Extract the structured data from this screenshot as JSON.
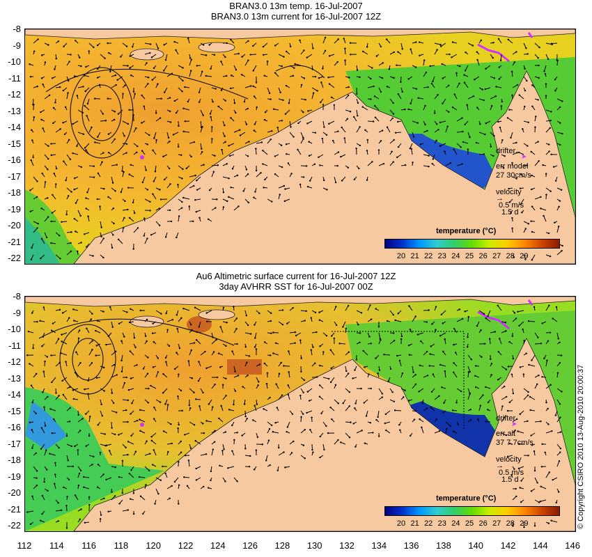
{
  "top_panel": {
    "title_line1": "BRAN3.0 13m temp. 16-Jul-2007",
    "title_line2": "BRAN3.0 13m current for 16-Jul-2007 12Z",
    "drifter_label": "drifter",
    "err_label": "err model",
    "err_value": "27 30cm/s",
    "velocity_label": "velocity",
    "scale_speed": "0.5 m/s",
    "scale_time": "1.5 d"
  },
  "bottom_panel": {
    "title_line1": "Au6 Altimetric surface current for 16-Jul-2007 12Z",
    "title_line2": "3day AVHRR SST for 16-Jul-2007 00Z",
    "drifter_label": "drifter",
    "err_label": "err alt",
    "err_value": "37 7.7cm/s",
    "velocity_label": "velocity",
    "scale_speed": "0.5 m/s",
    "scale_time": "1.5 d"
  },
  "colorbar": {
    "title": "temperature (°C)",
    "labels": [
      "20",
      "21",
      "22",
      "23",
      "24",
      "25",
      "26",
      "27",
      "28",
      "29"
    ],
    "colors": [
      "#00007f",
      "#0033cc",
      "#0099ff",
      "#33cccc",
      "#33cc66",
      "#66dd00",
      "#ccee00",
      "#ffcc00",
      "#ff8800",
      "#cc4400",
      "#8b1a00"
    ]
  },
  "y_axis_labels": [
    "-8",
    "-9",
    "-10",
    "-11",
    "-12",
    "-13",
    "-14",
    "-15",
    "-16",
    "-17",
    "-18",
    "-19",
    "-20",
    "-21",
    "-22"
  ],
  "x_axis_labels": [
    "112",
    "114",
    "116",
    "118",
    "120",
    "122",
    "124",
    "126",
    "128",
    "130",
    "132",
    "134",
    "136",
    "138",
    "140",
    "142",
    "144",
    "146"
  ],
  "copyright": "© Copyright CSIRO 2010   13-Aug-2010 20:00:37",
  "colors": {
    "land": "#f6c9a0",
    "warm_sea": "#f0b030",
    "shelf_sea": "#44cc66",
    "cold_sea": "#1030b0",
    "drifter_track": "#cc33ff"
  }
}
